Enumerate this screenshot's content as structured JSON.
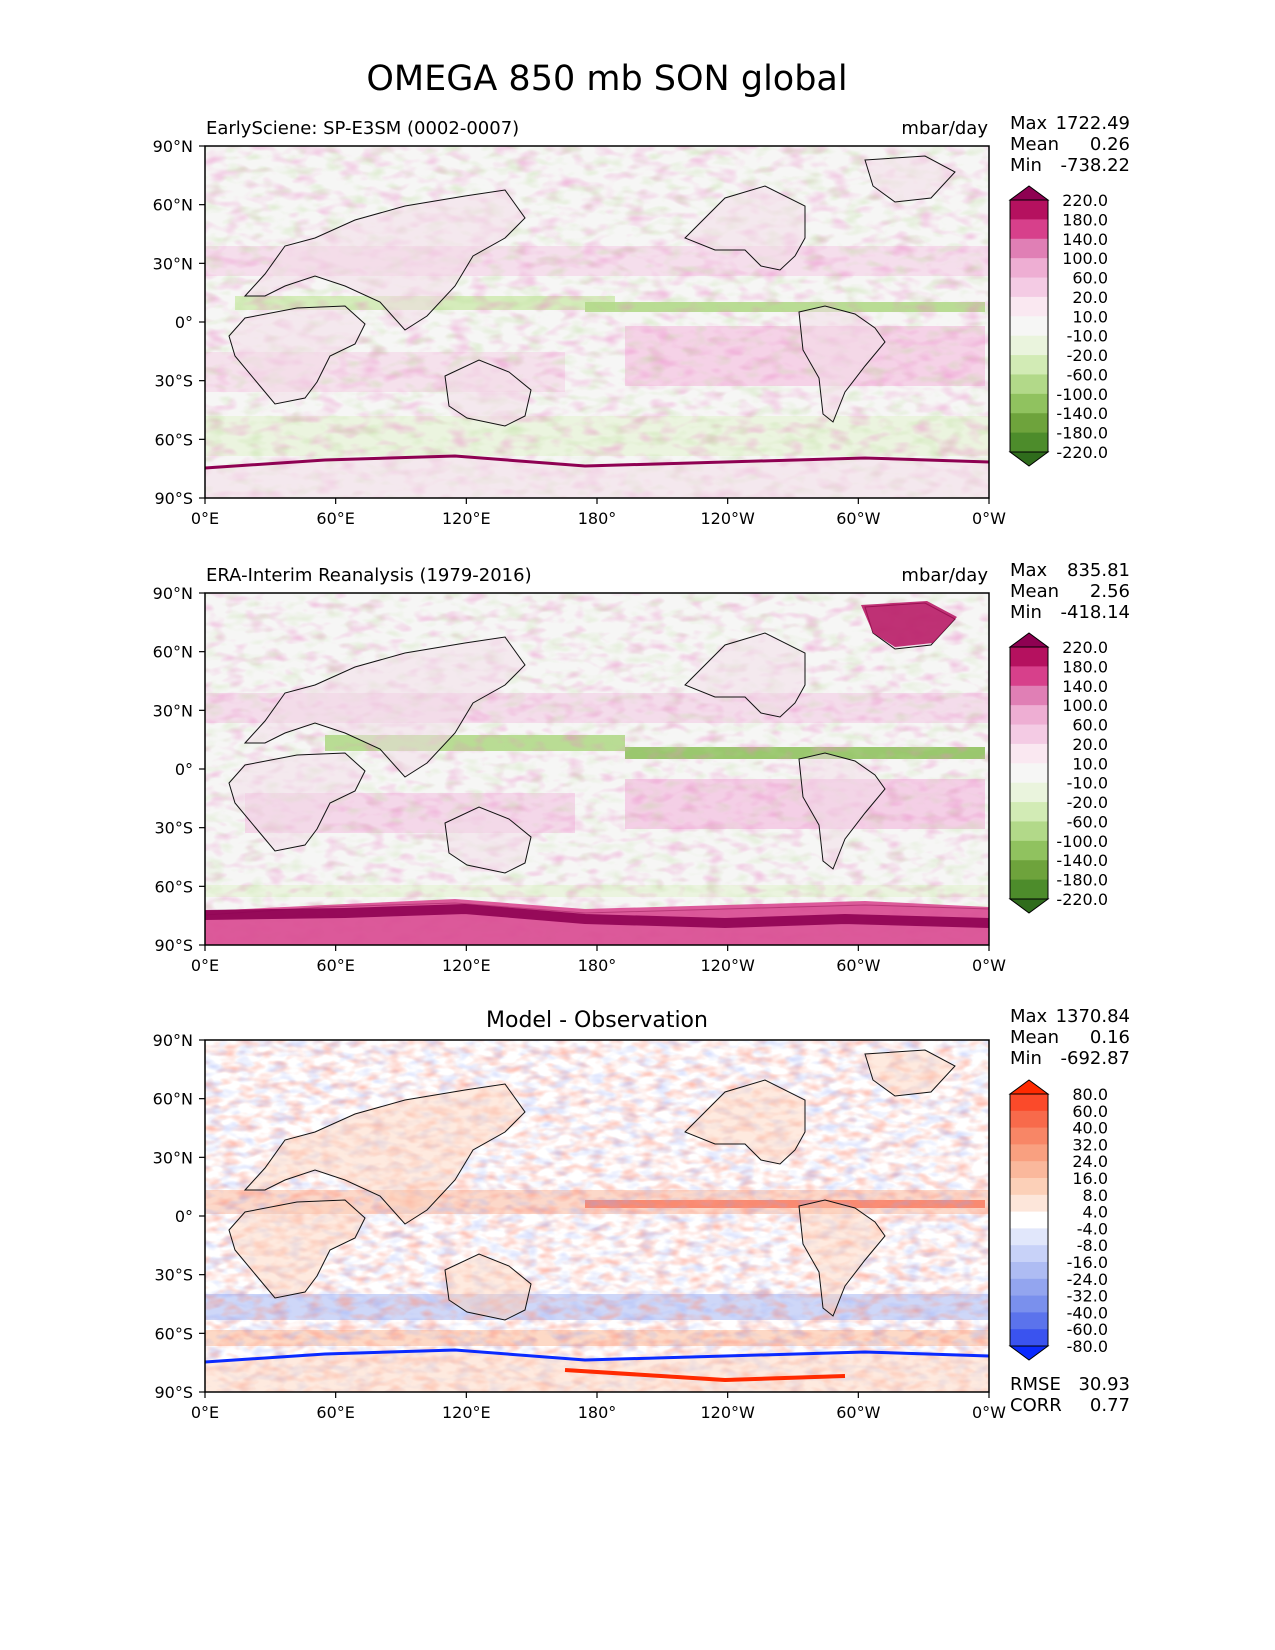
{
  "figure": {
    "title": "OMEGA 850 mb SON global"
  },
  "chart_data": [
    {
      "type": "heatmap",
      "id": "test",
      "title": "EarlySciene: SP-E3SM (0002-0007)",
      "units": "mbar/day",
      "stats": {
        "max_label": "Max",
        "max": "1722.49",
        "mean_label": "Mean",
        "mean": "0.26",
        "min_label": "Min",
        "min": "-738.22"
      },
      "x_ticks": [
        "0°E",
        "60°E",
        "120°E",
        "180°",
        "120°W",
        "60°W",
        "0°W"
      ],
      "y_ticks": [
        "90°N",
        "60°N",
        "30°N",
        "0°",
        "30°S",
        "60°S",
        "90°S"
      ],
      "xlim": [
        0,
        360
      ],
      "ylim": [
        -90,
        90
      ],
      "colorbar": {
        "levels": [
          "220.0",
          "180.0",
          "140.0",
          "100.0",
          "60.0",
          "20.0",
          "10.0",
          "-10.0",
          "-20.0",
          "-60.0",
          "-100.0",
          "-140.0",
          "-180.0",
          "-220.0"
        ],
        "colors": [
          "#8e0152",
          "#b5115f",
          "#d7408b",
          "#e07fb5",
          "#eeaed3",
          "#f4cbe4",
          "#fae8f1",
          "#f6f6f5",
          "#eaf4dd",
          "#d2ebb5",
          "#b2d989",
          "#90c25f",
          "#6ea33c",
          "#4d8c2b",
          "#2f6c1c"
        ]
      }
    },
    {
      "type": "heatmap",
      "id": "ref",
      "title": "ERA-Interim Reanalysis (1979-2016)",
      "units": "mbar/day",
      "stats": {
        "max_label": "Max",
        "max": "835.81",
        "mean_label": "Mean",
        "mean": "2.56",
        "min_label": "Min",
        "min": "-418.14"
      },
      "x_ticks": [
        "0°E",
        "60°E",
        "120°E",
        "180°",
        "120°W",
        "60°W",
        "0°W"
      ],
      "y_ticks": [
        "90°N",
        "60°N",
        "30°N",
        "0°",
        "30°S",
        "60°S",
        "90°S"
      ],
      "xlim": [
        0,
        360
      ],
      "ylim": [
        -90,
        90
      ],
      "colorbar": {
        "levels": [
          "220.0",
          "180.0",
          "140.0",
          "100.0",
          "60.0",
          "20.0",
          "10.0",
          "-10.0",
          "-20.0",
          "-60.0",
          "-100.0",
          "-140.0",
          "-180.0",
          "-220.0"
        ],
        "colors": [
          "#8e0152",
          "#b5115f",
          "#d7408b",
          "#e07fb5",
          "#eeaed3",
          "#f4cbe4",
          "#fae8f1",
          "#f6f6f5",
          "#eaf4dd",
          "#d2ebb5",
          "#b2d989",
          "#90c25f",
          "#6ea33c",
          "#4d8c2b",
          "#2f6c1c"
        ]
      }
    },
    {
      "type": "heatmap",
      "id": "diff",
      "title": "Model - Observation",
      "units": "",
      "stats": {
        "max_label": "Max",
        "max": "1370.84",
        "mean_label": "Mean",
        "mean": "0.16",
        "min_label": "Min",
        "min": "-692.87"
      },
      "rmse_label": "RMSE",
      "rmse": "30.93",
      "corr_label": "CORR",
      "corr": "0.77",
      "x_ticks": [
        "0°E",
        "60°E",
        "120°E",
        "180°",
        "120°W",
        "60°W",
        "0°W"
      ],
      "y_ticks": [
        "90°N",
        "60°N",
        "30°N",
        "0°",
        "30°S",
        "60°S",
        "90°S"
      ],
      "xlim": [
        0,
        360
      ],
      "ylim": [
        -90,
        90
      ],
      "colorbar": {
        "levels": [
          "80.0",
          "60.0",
          "40.0",
          "32.0",
          "24.0",
          "16.0",
          "8.0",
          "4.0",
          "-4.0",
          "-8.0",
          "-16.0",
          "-24.0",
          "-32.0",
          "-40.0",
          "-60.0",
          "-80.0"
        ],
        "colors": [
          "#ff2a00",
          "#fb4a2a",
          "#f86a4b",
          "#f88666",
          "#f9a080",
          "#fab89c",
          "#fcd0b8",
          "#fde6da",
          "#ffffff",
          "#e1e7fb",
          "#c8d2f8",
          "#aebcf3",
          "#93a5ef",
          "#7a90ed",
          "#5b73ec",
          "#3a53ef",
          "#0a2aff"
        ]
      }
    }
  ]
}
